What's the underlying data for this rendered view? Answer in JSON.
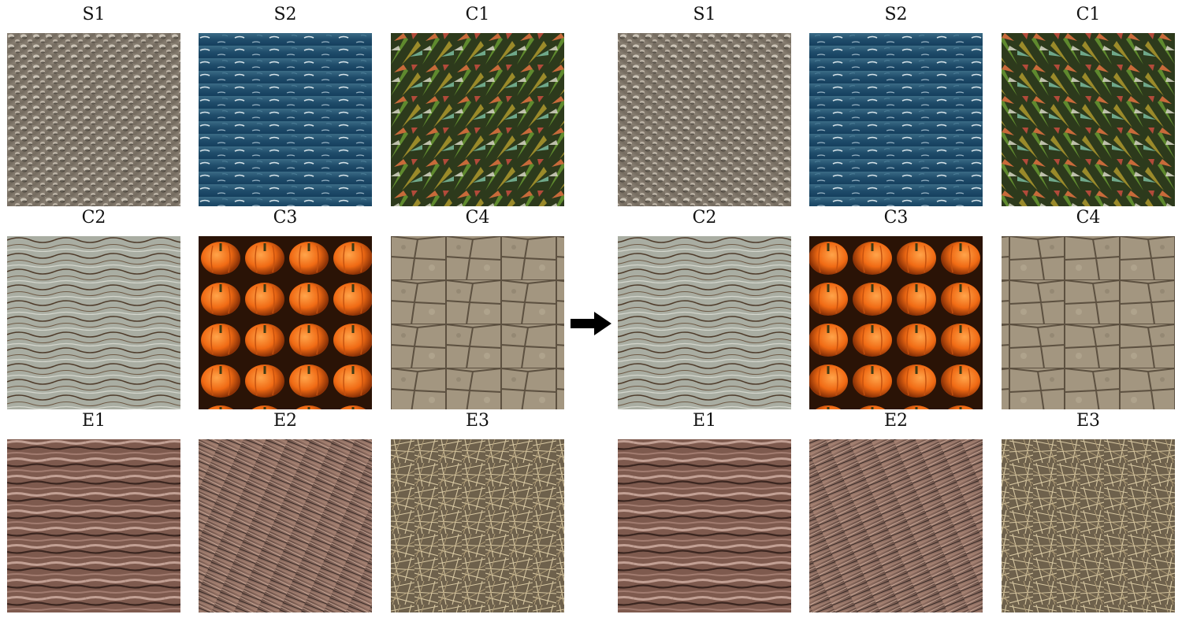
{
  "figure": {
    "arrow_icon": "right-arrow-icon",
    "panels": [
      {
        "side": "input",
        "cells": [
          {
            "label": "S1",
            "texture": "pebbled-metal"
          },
          {
            "label": "S2",
            "texture": "ocean-waves"
          },
          {
            "label": "C1",
            "texture": "painted-foliage"
          },
          {
            "label": "C2",
            "texture": "weathered-wood"
          },
          {
            "label": "C3",
            "texture": "pumpkins"
          },
          {
            "label": "C4",
            "texture": "stone-wall"
          },
          {
            "label": "E1",
            "texture": "tree-bark"
          },
          {
            "label": "E2",
            "texture": "fur"
          },
          {
            "label": "E3",
            "texture": "dry-grass"
          }
        ]
      },
      {
        "side": "output",
        "cells": [
          {
            "label": "S1",
            "texture": "pebbled-metal"
          },
          {
            "label": "S2",
            "texture": "ocean-waves"
          },
          {
            "label": "C1",
            "texture": "painted-foliage"
          },
          {
            "label": "C2",
            "texture": "weathered-wood"
          },
          {
            "label": "C3",
            "texture": "pumpkins"
          },
          {
            "label": "C4",
            "texture": "stone-wall"
          },
          {
            "label": "E1",
            "texture": "tree-bark"
          },
          {
            "label": "E2",
            "texture": "fur"
          },
          {
            "label": "E3",
            "texture": "dry-grass"
          }
        ]
      }
    ]
  }
}
